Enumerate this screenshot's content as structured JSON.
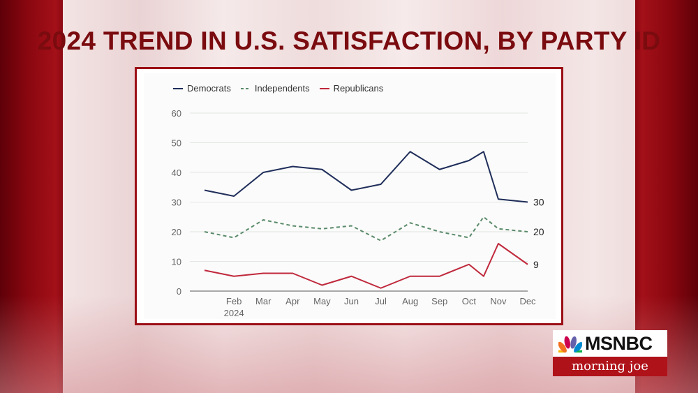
{
  "title": "2024 TREND IN U.S. SATISFACTION, BY PARTY ID",
  "logo": {
    "network": "MSNBC",
    "show": "morning joe"
  },
  "colors": {
    "democrats": "#1f2d5a",
    "independents": "#5a8a6a",
    "republicans": "#c0283c"
  },
  "chart_data": {
    "type": "line",
    "title": "2024 TREND IN U.S. SATISFACTION, BY PARTY ID",
    "xlabel": "",
    "ylabel": "",
    "ylim": [
      0,
      60
    ],
    "yticks": [
      0,
      10,
      20,
      30,
      40,
      50,
      60
    ],
    "xlim": [
      0.5,
      12
    ],
    "xtick_positions": [
      2,
      3,
      4,
      5,
      6,
      7,
      8,
      9,
      10,
      11,
      12
    ],
    "xtick_labels": [
      "Feb",
      "Mar",
      "Apr",
      "May",
      "Jun",
      "Jul",
      "Aug",
      "Sep",
      "Oct",
      "Nov",
      "Dec"
    ],
    "xtick_sublabel": "2024",
    "series": [
      {
        "name": "Democrats",
        "style": "solid",
        "x": [
          1,
          2,
          3,
          4,
          5,
          6,
          7,
          8,
          9,
          10,
          10.5,
          11,
          12
        ],
        "values": [
          34,
          32,
          40,
          42,
          41,
          34,
          36,
          47,
          41,
          44,
          47,
          31,
          30
        ],
        "end_label": "30"
      },
      {
        "name": "Independents",
        "style": "dashed",
        "x": [
          1,
          2,
          3,
          4,
          5,
          6,
          7,
          8,
          9,
          10,
          10.5,
          11,
          12
        ],
        "values": [
          20,
          18,
          24,
          22,
          21,
          22,
          17,
          23,
          20,
          18,
          25,
          21,
          20
        ],
        "end_label": "20"
      },
      {
        "name": "Republicans",
        "style": "solid",
        "x": [
          1,
          2,
          3,
          4,
          5,
          6,
          7,
          8,
          9,
          10,
          10.5,
          11,
          12
        ],
        "values": [
          7,
          5,
          6,
          6,
          2,
          5,
          1,
          5,
          5,
          9,
          5,
          16,
          9
        ],
        "end_label": "9"
      }
    ]
  }
}
